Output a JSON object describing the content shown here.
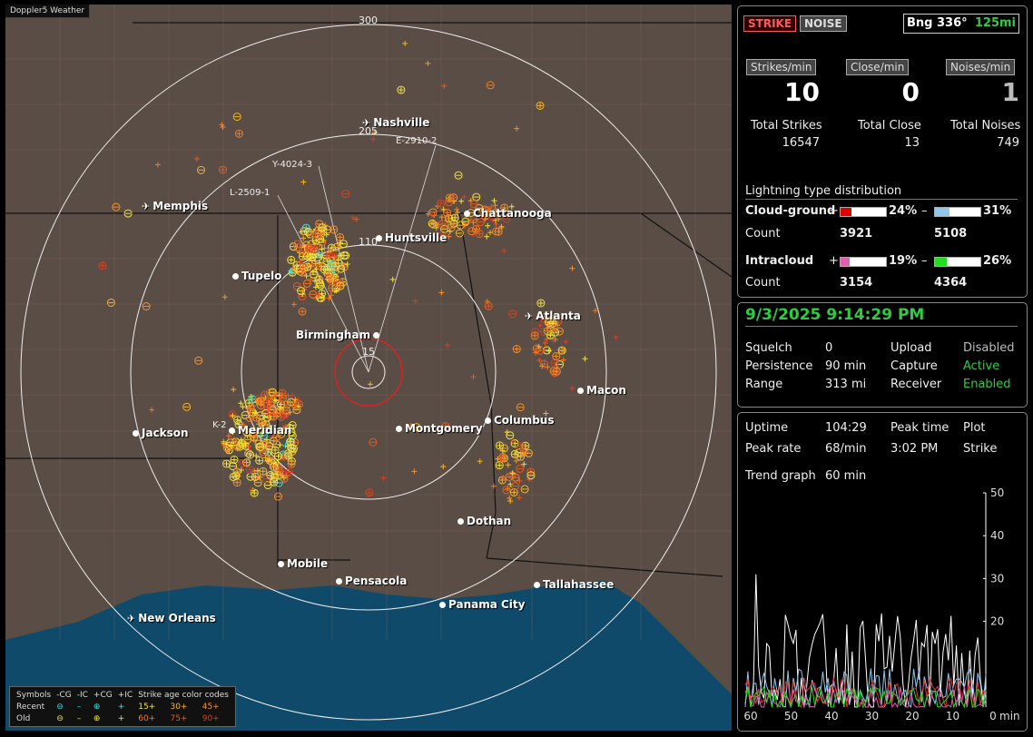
{
  "app_title": "Doppler5 Weather",
  "map": {
    "ring_labels": [
      "300",
      "205",
      "110",
      "15"
    ],
    "cities": [
      {
        "name": "Nashville",
        "icon": "airport-icon"
      },
      {
        "name": "Memphis",
        "icon": "airport-icon"
      },
      {
        "name": "Chattanooga",
        "icon": "dot-icon"
      },
      {
        "name": "Huntsville",
        "icon": "dot-icon"
      },
      {
        "name": "Tupelo",
        "icon": "dot-icon"
      },
      {
        "name": "Atlanta",
        "icon": "airport-icon"
      },
      {
        "name": "Birmingham",
        "icon": "dot-icon"
      },
      {
        "name": "Macon",
        "icon": "dot-icon"
      },
      {
        "name": "Jackson",
        "icon": "dot-icon"
      },
      {
        "name": "Meridian",
        "icon": "dot-icon"
      },
      {
        "name": "Montgomery",
        "icon": "dot-icon"
      },
      {
        "name": "Columbus",
        "icon": "dot-icon"
      },
      {
        "name": "Dothan",
        "icon": "dot-icon"
      },
      {
        "name": "Mobile",
        "icon": "dot-icon"
      },
      {
        "name": "Pensacola",
        "icon": "dot-icon"
      },
      {
        "name": "Tallahassee",
        "icon": "dot-icon"
      },
      {
        "name": "Panama City",
        "icon": "dot-icon"
      },
      {
        "name": "New Orleans",
        "icon": "airport-icon"
      }
    ],
    "storm_tags": [
      "E-2910-2",
      "Y-4024-3",
      "L-2509-1",
      "K-2"
    ],
    "legend": {
      "symbols_label": "Symbols",
      "headers": [
        "-CG",
        "-IC",
        "+CG",
        "+IC"
      ],
      "age_header": "Strike age color codes",
      "recent_label": "Recent",
      "old_label": "Old",
      "recent_ages": [
        "15+",
        "30+",
        "45+"
      ],
      "old_ages": [
        "60+",
        "75+",
        "90+"
      ]
    }
  },
  "panel1": {
    "strike_btn": "STRIKE",
    "noise_btn": "NOISE",
    "bearing_label": "Bng 336°",
    "bearing_range": "125mi",
    "rate_labels": [
      "Strikes/min",
      "Close/min",
      "Noises/min"
    ],
    "rate_values": [
      "10",
      "0",
      "1"
    ],
    "total_labels": [
      "Total Strikes",
      "Total Close",
      "Total Noises"
    ],
    "total_values": [
      "16547",
      "13",
      "749"
    ],
    "dist_title": "Lightning type distribution",
    "cg_label": "Cloud-ground",
    "ic_label": "Intracloud",
    "count_label": "Count",
    "plus": "+",
    "minus": "–",
    "cg_pos_pct": "24%",
    "cg_neg_pct": "31%",
    "ic_pos_pct": "19%",
    "ic_neg_pct": "26%",
    "cg_pos_count": "3921",
    "cg_neg_count": "5108",
    "ic_pos_count": "3154",
    "ic_neg_count": "4364",
    "bar_fractions": {
      "cg_pos": 0.24,
      "cg_neg": 0.31,
      "ic_pos": 0.19,
      "ic_neg": 0.26
    },
    "colors": {
      "cg_pos": "#e00000",
      "cg_neg": "#8ec8f0",
      "ic_pos": "#e060b0",
      "ic_neg": "#22dd22"
    }
  },
  "panel2": {
    "datetime": "9/3/2025 9:14:29 PM",
    "squelch_label": "Squelch",
    "squelch_value": "0",
    "upload_label": "Upload",
    "upload_value": "Disabled",
    "persistence_label": "Persistence",
    "persistence_value": "90 min",
    "capture_label": "Capture",
    "capture_value": "Active",
    "range_label": "Range",
    "range_value": "313 mi",
    "receiver_label": "Receiver",
    "receiver_value": "Enabled"
  },
  "panel3": {
    "uptime_label": "Uptime",
    "uptime_value": "104:29",
    "peak_time_label": "Peak time",
    "plot_label": "Plot",
    "peak_rate_label": "Peak rate",
    "peak_rate_value": "68/min",
    "peak_time_value": "3:02 PM",
    "plot_value": "Strike",
    "trend_label": "Trend graph",
    "trend_value": "60 min",
    "y_ticks": [
      "50",
      "40",
      "30",
      "20"
    ],
    "x_ticks": [
      "60",
      "50",
      "40",
      "30",
      "20",
      "10",
      "0"
    ],
    "x_unit": "min"
  }
}
